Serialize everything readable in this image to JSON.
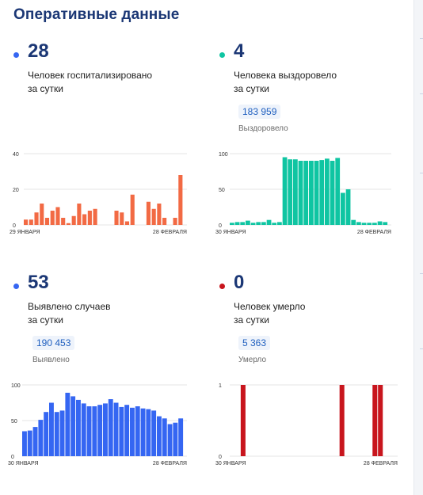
{
  "page_title": "Оперативные данные",
  "colors": {
    "title": "#1b3775",
    "hospitalized": "#f26a44",
    "recovered": "#0fc5a2",
    "cases": "#3566f2",
    "deaths": "#c8151d",
    "total_text": "#1f5fbf",
    "total_bg": "#eef3fb"
  },
  "cards": {
    "hospitalized": {
      "value": "28",
      "line1": "Человек госпитализировано",
      "line2": "за сутки"
    },
    "recovered": {
      "value": "4",
      "line1": "Человека выздоровело",
      "line2": "за сутки",
      "total": "183 959",
      "total_label": "Выздоровело"
    },
    "cases": {
      "value": "53",
      "line1": "Выявлено случаев",
      "line2": "за сутки",
      "total": "190 453",
      "total_label": "Выявлено"
    },
    "deaths": {
      "value": "0",
      "line1": "Человек умерло",
      "line2": "за сутки",
      "total": "5 363",
      "total_label": "Умерло"
    }
  },
  "chart_data": [
    {
      "id": "hospitalized",
      "type": "bar",
      "color": "#f26a44",
      "ylim": [
        0,
        40
      ],
      "yticks": [
        0,
        20,
        40
      ],
      "x_labels": [
        "29 ЯНВАРЯ",
        "28 ФЕВРАЛЯ"
      ],
      "values": [
        3,
        3,
        7,
        12,
        4,
        8,
        10,
        4,
        1,
        5,
        12,
        6,
        8,
        9,
        0,
        0,
        0,
        8,
        7,
        2,
        17,
        0,
        0,
        13,
        9,
        12,
        4,
        0,
        4,
        28
      ]
    },
    {
      "id": "recovered",
      "type": "bar",
      "color": "#0fc5a2",
      "ylim": [
        0,
        100
      ],
      "yticks": [
        0,
        50,
        100
      ],
      "x_labels": [
        "30 ЯНВАРЯ",
        "28 ФЕВРАЛЯ"
      ],
      "values": [
        3,
        4,
        4,
        6,
        3,
        4,
        4,
        7,
        3,
        4,
        95,
        92,
        92,
        90,
        90,
        90,
        90,
        91,
        93,
        90,
        94,
        45,
        50,
        7,
        4,
        3,
        3,
        3,
        5,
        4
      ]
    },
    {
      "id": "cases",
      "type": "bar",
      "color": "#3566f2",
      "ylim": [
        0,
        100
      ],
      "yticks": [
        0,
        50,
        100
      ],
      "x_labels": [
        "30 ЯНВАРЯ",
        "28 ФЕВРАЛЯ"
      ],
      "values": [
        35,
        36,
        41,
        51,
        62,
        75,
        62,
        64,
        89,
        84,
        79,
        74,
        70,
        70,
        72,
        74,
        80,
        75,
        69,
        72,
        68,
        70,
        67,
        66,
        64,
        56,
        53,
        45,
        47,
        53
      ]
    },
    {
      "id": "deaths",
      "type": "bar",
      "color": "#c8151d",
      "ylim": [
        0,
        1
      ],
      "yticks": [
        0,
        1
      ],
      "x_labels": [
        "30 ЯНВАРЯ",
        "28 ФЕВРАЛЯ"
      ],
      "values": [
        0,
        0,
        1,
        0,
        0,
        0,
        0,
        0,
        0,
        0,
        0,
        0,
        0,
        0,
        0,
        0,
        0,
        0,
        0,
        0,
        1,
        0,
        0,
        0,
        0,
        0,
        1,
        1,
        0,
        0
      ]
    }
  ]
}
